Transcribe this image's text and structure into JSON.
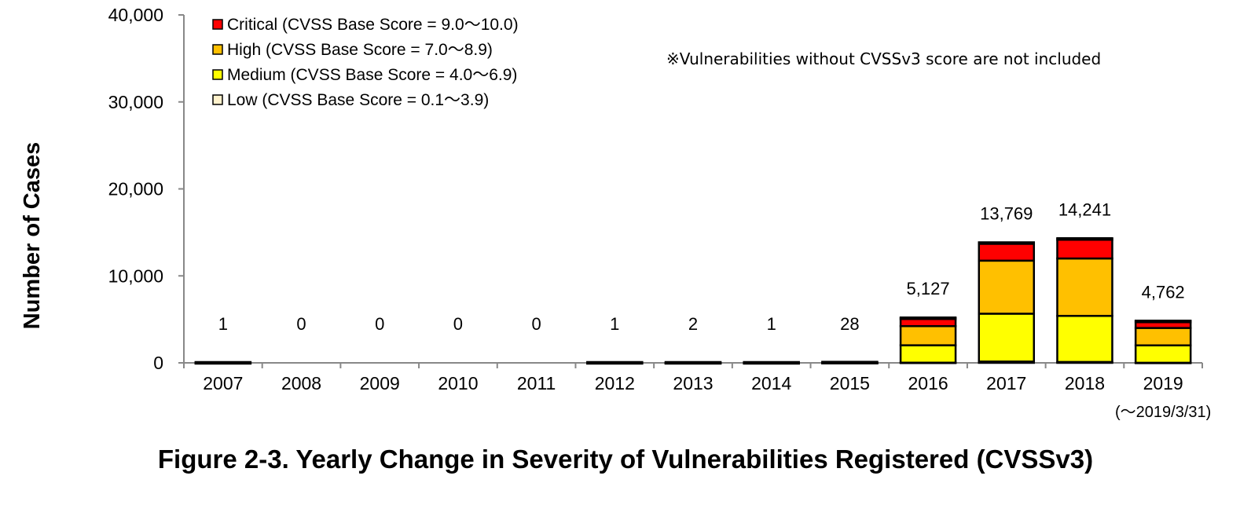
{
  "figure": {
    "caption": "Figure 2-3.  Yearly Change in Severity of Vulnerabilities Registered (CVSSv3)"
  },
  "chart_data": {
    "type": "bar",
    "stacked": true,
    "categories": [
      "2007",
      "2008",
      "2009",
      "2010",
      "2011",
      "2012",
      "2013",
      "2014",
      "2015",
      "2016",
      "2017",
      "2018",
      "2019"
    ],
    "category_sublabels": {
      "2019": "(～2019/3/31)"
    },
    "ylabel": "Number of Cases",
    "xlabel": "",
    "ylim": [
      0,
      40000
    ],
    "yticks": [
      0,
      10000,
      20000,
      30000,
      40000
    ],
    "ytick_labels": [
      "0",
      "10,000",
      "20,000",
      "30,000",
      "40,000"
    ],
    "grid": false,
    "legend_position": "top-left",
    "series": [
      {
        "name": "Low (CVSS Base Score = 0.1～3.9)",
        "color": "#FFF2CC",
        "values": [
          0,
          0,
          0,
          0,
          0,
          0,
          0,
          0,
          1,
          20,
          150,
          100,
          10
        ]
      },
      {
        "name": "Medium (CVSS Base Score = 4.0～6.9)",
        "color": "#FFFF00",
        "values": [
          0,
          0,
          0,
          0,
          0,
          1,
          1,
          0,
          12,
          2000,
          5500,
          5300,
          2000
        ]
      },
      {
        "name": "High (CVSS Base Score = 7.0～8.9)",
        "color": "#FFC000",
        "values": [
          1,
          0,
          0,
          0,
          0,
          0,
          1,
          1,
          10,
          2200,
          6100,
          6600,
          2000
        ]
      },
      {
        "name": "Critical (CVSS Base Score = 9.0～10.0)",
        "color": "#FF0000",
        "values": [
          0,
          0,
          0,
          0,
          0,
          0,
          0,
          0,
          5,
          907,
          2019,
          2241,
          752
        ]
      }
    ],
    "legend_order": [
      3,
      2,
      1,
      0
    ],
    "totals": [
      1,
      0,
      0,
      0,
      0,
      1,
      2,
      1,
      28,
      5127,
      13769,
      14241,
      4762
    ],
    "total_labels": [
      "1",
      "0",
      "0",
      "0",
      "0",
      "1",
      "2",
      "1",
      "28",
      "5,127",
      "13,769",
      "14,241",
      "4,762"
    ],
    "annotation": "※Vulnerabilities without CVSSv3 score are not included"
  }
}
